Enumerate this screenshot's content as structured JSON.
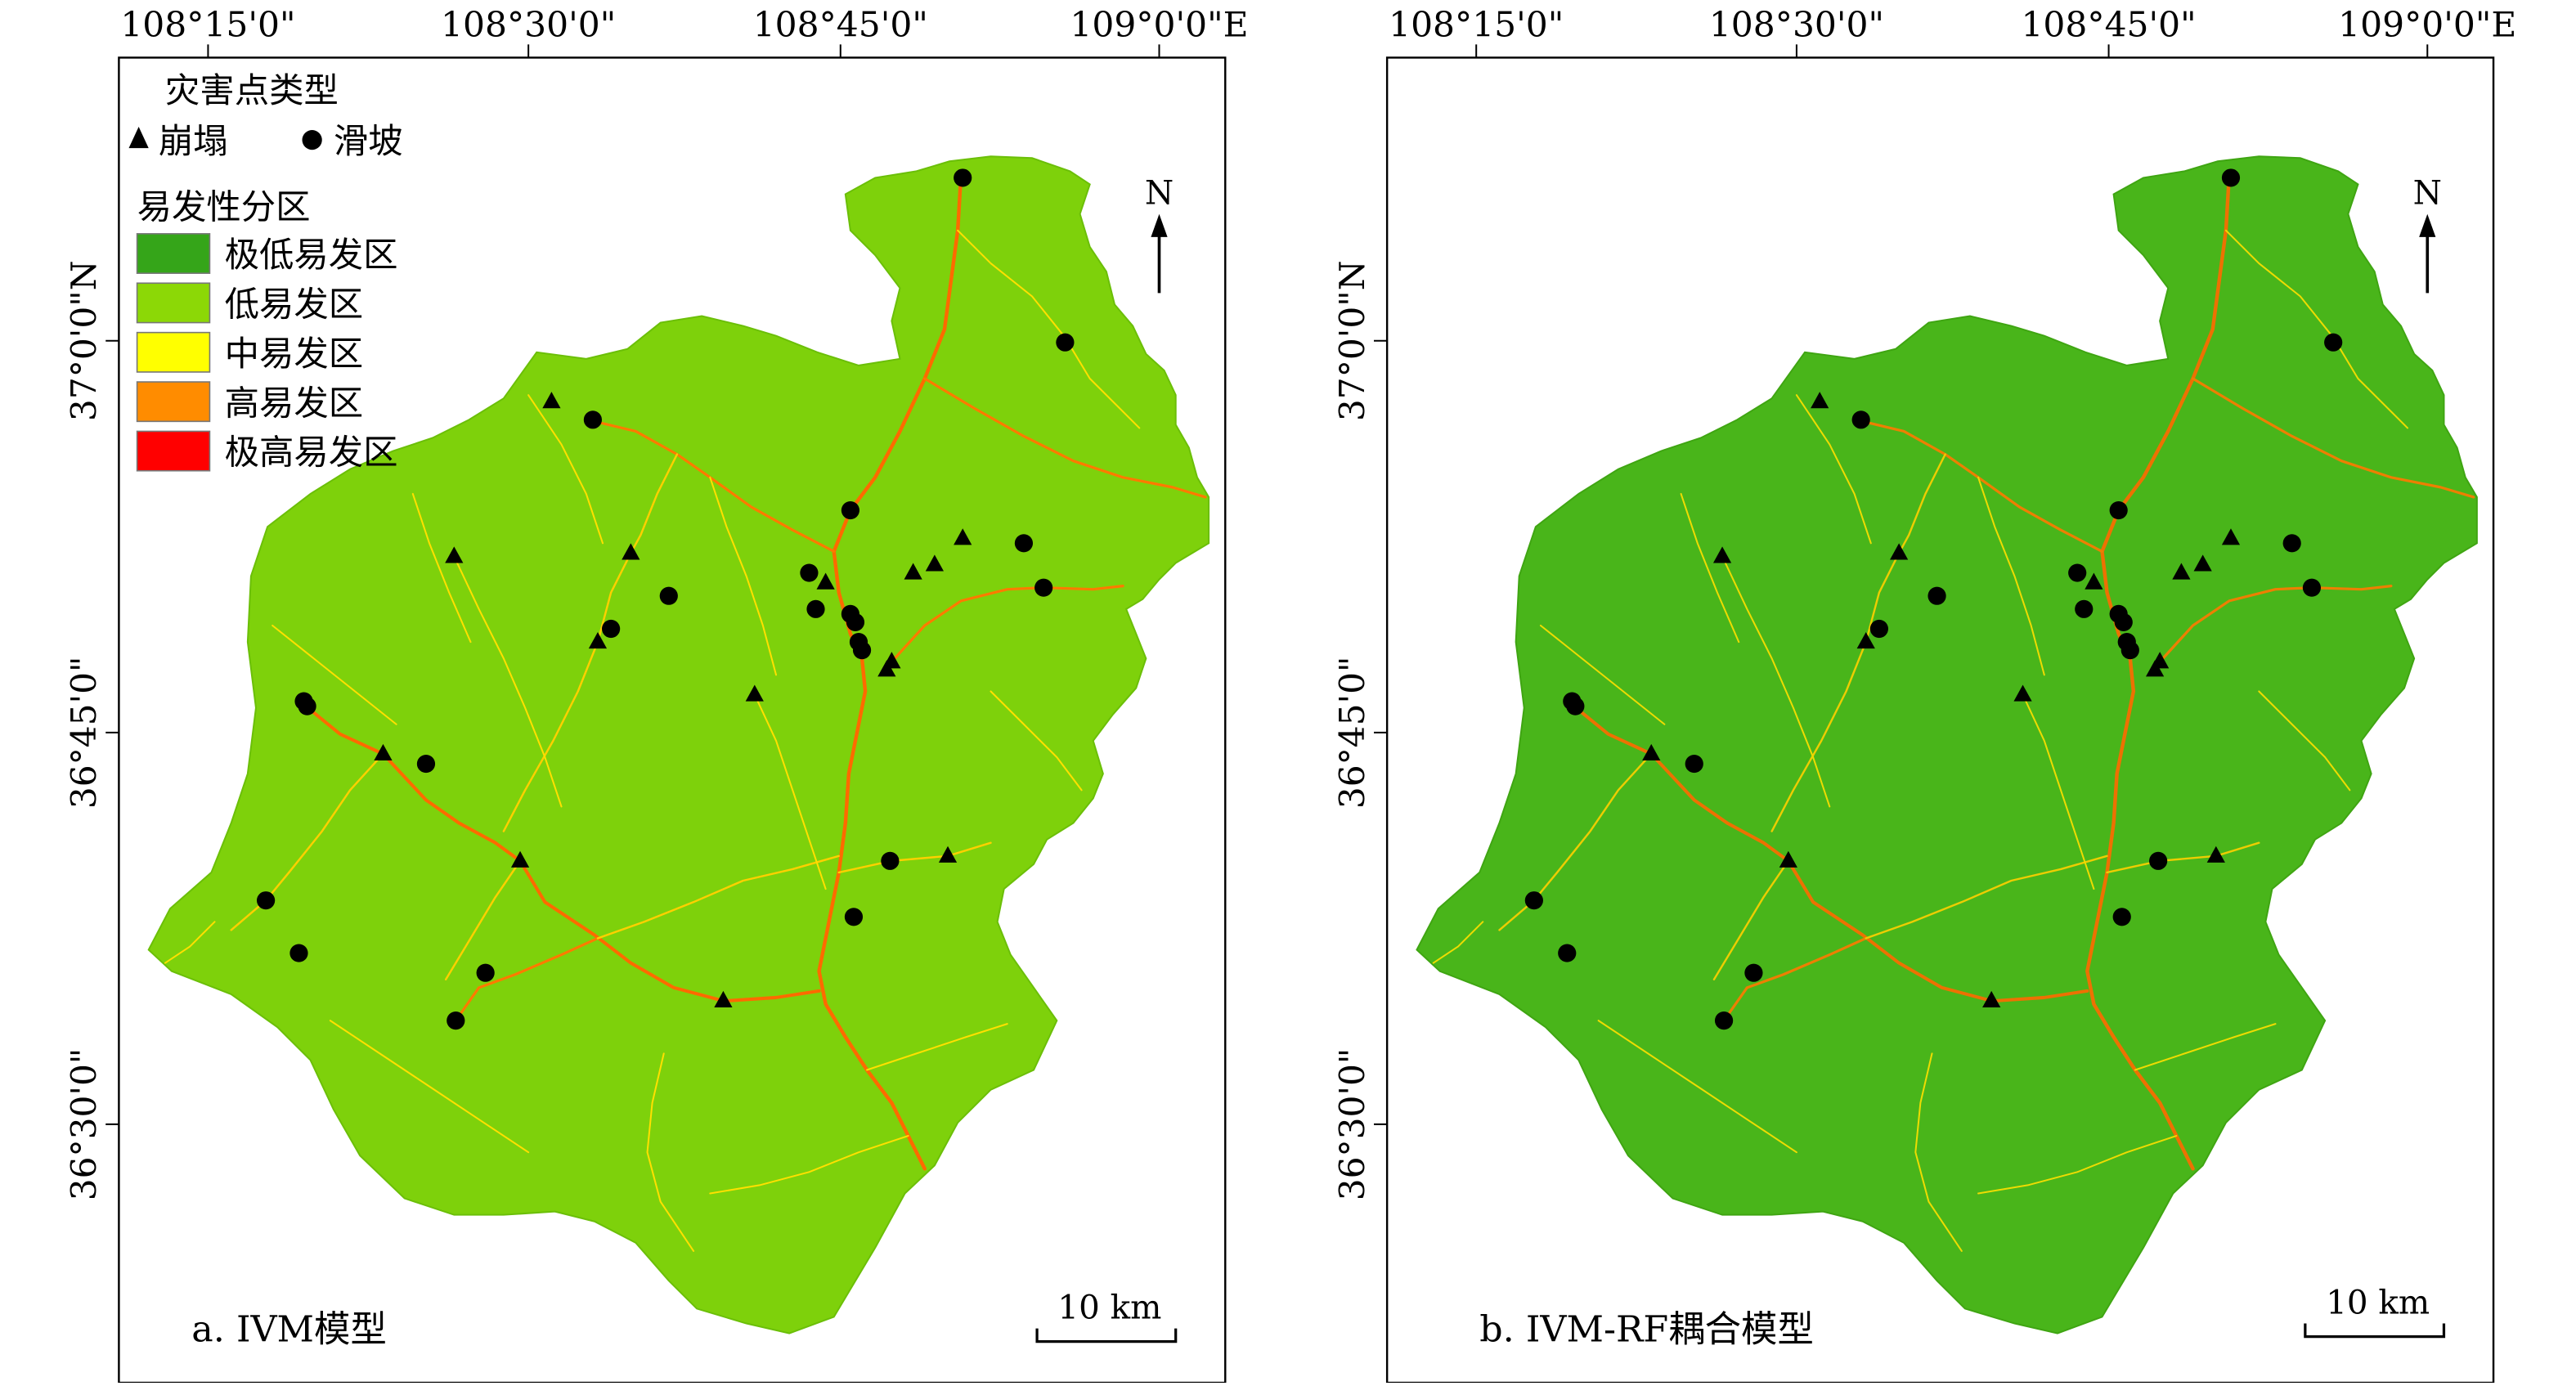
{
  "lon_labels": [
    "108°15'0\"",
    "108°30'0\"",
    "108°45'0\"",
    "109°0'0\"E"
  ],
  "lat_labels": [
    "37°0'0\"N",
    "36°45'0\"",
    "36°30'0\""
  ],
  "legend": {
    "hazard_title": "灾害点类型",
    "collapse_label": "崩塌",
    "landslide_label": "滑坡",
    "zone_title": "易发性分区",
    "zones": [
      {
        "label": "极低易发区",
        "color": "#35a519"
      },
      {
        "label": "低易发区",
        "color": "#8cd806"
      },
      {
        "label": "中易发区",
        "color": "#ffff00"
      },
      {
        "label": "高易发区",
        "color": "#ff8c00"
      },
      {
        "label": "极高易发区",
        "color": "#ff0000"
      }
    ]
  },
  "north_label": "N",
  "scale_label": "10 km",
  "panels": [
    {
      "caption": "a. IVM模型",
      "base_color": "#7ed10b",
      "ridge_color": "#b3e51e"
    },
    {
      "caption": "b. IVM-RF耦合模型",
      "base_color": "#49b51a",
      "ridge_color": "#7fcf10"
    }
  ],
  "hazards": {
    "landslides": [
      [
        583,
        108
      ],
      [
        645,
        208
      ],
      [
        359,
        255
      ],
      [
        515,
        310
      ],
      [
        620,
        330
      ],
      [
        490,
        348
      ],
      [
        405,
        362
      ],
      [
        632,
        357
      ],
      [
        494,
        370
      ],
      [
        515,
        373
      ],
      [
        518,
        378
      ],
      [
        370,
        382
      ],
      [
        520,
        390
      ],
      [
        522,
        395
      ],
      [
        184,
        426
      ],
      [
        186,
        429
      ],
      [
        258,
        464
      ],
      [
        539,
        523
      ],
      [
        161,
        547
      ],
      [
        517,
        557
      ],
      [
        181,
        579
      ],
      [
        294,
        591
      ],
      [
        276,
        620
      ]
    ],
    "collapses": [
      [
        334,
        244
      ],
      [
        275,
        338
      ],
      [
        382,
        336
      ],
      [
        500,
        354
      ],
      [
        553,
        348
      ],
      [
        566,
        343
      ],
      [
        583,
        327
      ],
      [
        362,
        390
      ],
      [
        540,
        402
      ],
      [
        537,
        407
      ],
      [
        457,
        422
      ],
      [
        232,
        458
      ],
      [
        315,
        523
      ],
      [
        574,
        520
      ],
      [
        438,
        608
      ]
    ]
  }
}
